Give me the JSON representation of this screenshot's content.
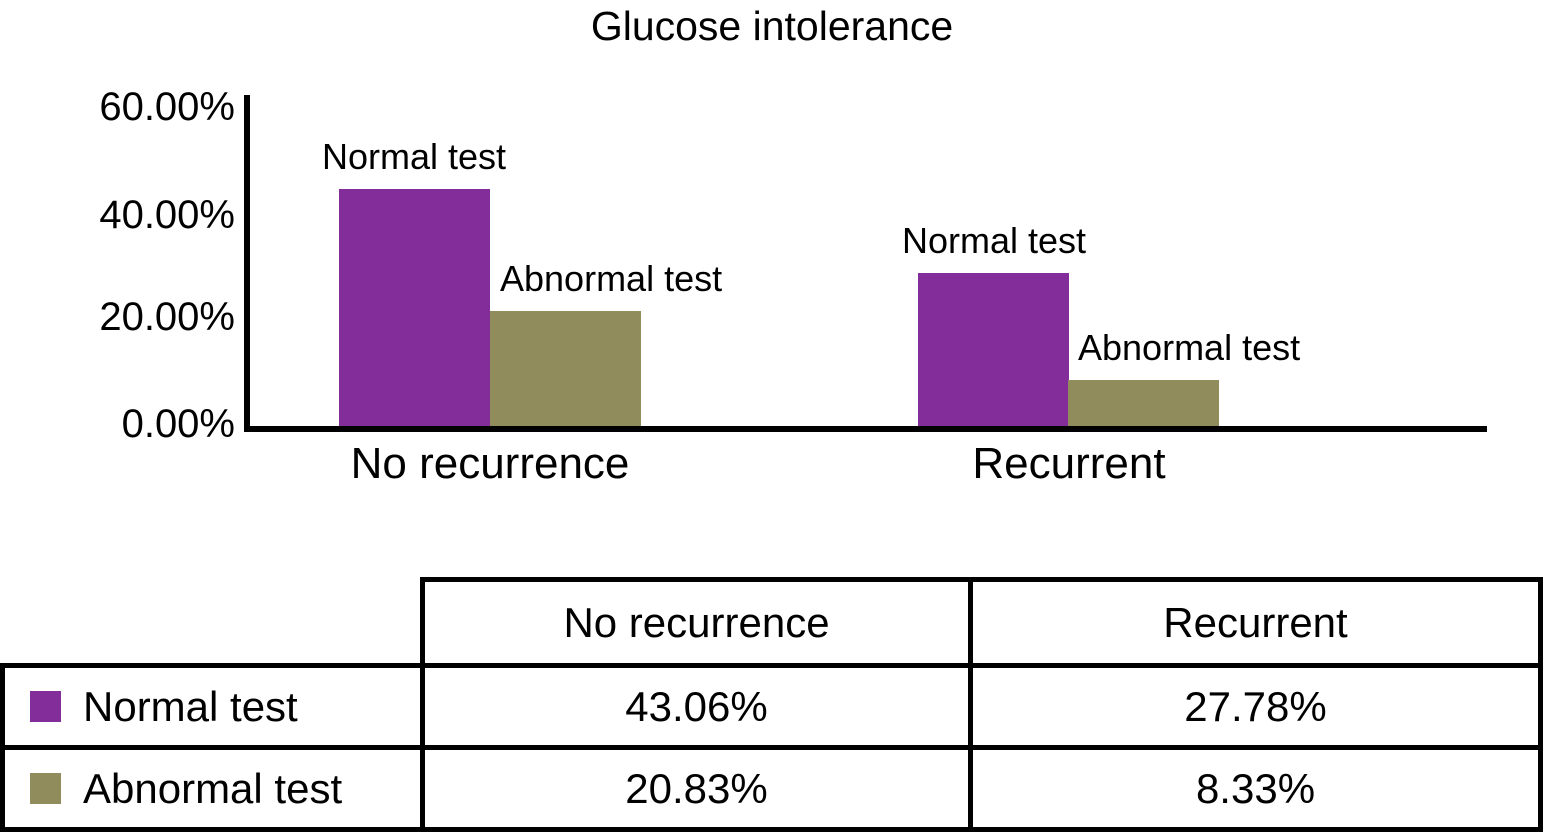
{
  "chart_data": {
    "type": "bar",
    "title": "Glucose intolerance",
    "categories": [
      "No recurrence",
      "Recurrent"
    ],
    "series": [
      {
        "name": "Normal test",
        "color": "#822D99",
        "values": [
          43.06,
          27.78
        ]
      },
      {
        "name": "Abnormal test",
        "color": "#918C5C",
        "values": [
          20.83,
          8.33
        ]
      }
    ],
    "ylim": [
      0,
      60
    ],
    "y_tick_labels": [
      "0.00%",
      "20.00%",
      "40.00%",
      "60.00%"
    ],
    "value_format": "percent",
    "grid": false,
    "bar_annotations": "series name above each bar",
    "legend_position": "in table below chart"
  },
  "table": {
    "corner_label": "",
    "columns": [
      "No recurrence",
      "Recurrent"
    ],
    "rows": [
      {
        "label": "Normal test",
        "swatch_color": "#822D99",
        "values": [
          "43.06%",
          "27.78%"
        ]
      },
      {
        "label": "Abnormal test",
        "swatch_color": "#918C5C",
        "values": [
          "20.83%",
          "8.33%"
        ]
      }
    ]
  }
}
